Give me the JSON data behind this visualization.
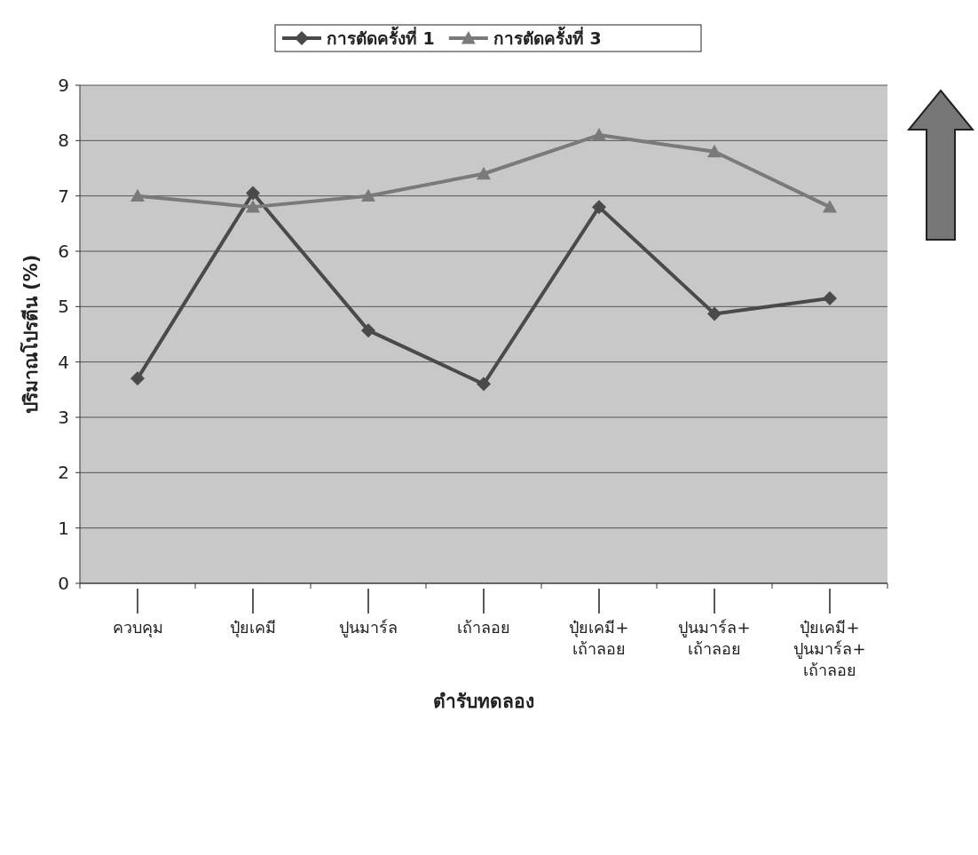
{
  "chart_data": {
    "type": "line",
    "xlabel": "ตำรับทดลอง",
    "ylabel": "ปริมาณโปรตีน (%)",
    "categories": [
      "ควบคุม",
      "ปุ๋ยเคมี",
      "ปูนมาร์ล",
      "เถ้าลอย",
      "ปุ๋ยเคมี+เถ้าลอย",
      "ปูนมาร์ล+เถ้าลอย",
      "ปุ๋ยเคมี+ปูนมาร์ล+เถ้าลอย"
    ],
    "series": [
      {
        "name": "การตัดครั้งที่ 1",
        "color": "#4a4a4a",
        "marker": "diamond",
        "values": [
          3.7,
          7.05,
          4.57,
          3.6,
          6.8,
          4.87,
          5.15
        ]
      },
      {
        "name": "การตัดครั้งที่ 3",
        "color": "#7a7a7a",
        "marker": "triangle",
        "values": [
          7.0,
          6.8,
          7.0,
          7.4,
          8.1,
          7.8,
          6.8
        ]
      }
    ],
    "ylim": [
      0,
      9
    ],
    "yticks": [
      0,
      1,
      2,
      3,
      4,
      5,
      6,
      7,
      8,
      9
    ],
    "grid": "y",
    "legend": "top",
    "line_style": "solid"
  }
}
